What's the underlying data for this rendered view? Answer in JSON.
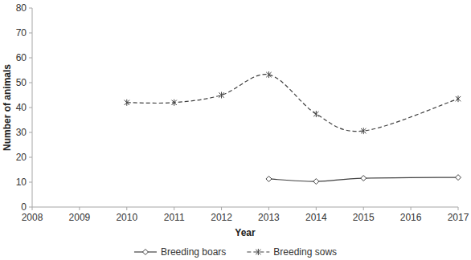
{
  "chart_data": {
    "type": "line",
    "x_label": "Year",
    "y_label": "Number of animals",
    "x": [
      2010,
      2011,
      2012,
      2013,
      2014,
      2015,
      2017
    ],
    "series": [
      {
        "name": "Breeding boars",
        "color": "#404040",
        "marker": "diamond",
        "line_style": "solid",
        "values": [
          null,
          null,
          null,
          11.3,
          10.3,
          11.6,
          11.9
        ]
      },
      {
        "name": "Breeding sows",
        "color": "#404040",
        "marker": "asterisk",
        "line_style": "dashed",
        "values": [
          42,
          42,
          45,
          53.2,
          37.4,
          30.6,
          43.5
        ]
      }
    ],
    "xlim": [
      2008,
      2017
    ],
    "xticks": [
      2008,
      2009,
      2010,
      2011,
      2012,
      2013,
      2014,
      2015,
      2016,
      2017
    ],
    "ylim": [
      0,
      80
    ],
    "yticks": [
      0,
      10,
      20,
      30,
      40,
      50,
      60,
      70,
      80
    ],
    "grid": false,
    "legend": "bottom"
  }
}
